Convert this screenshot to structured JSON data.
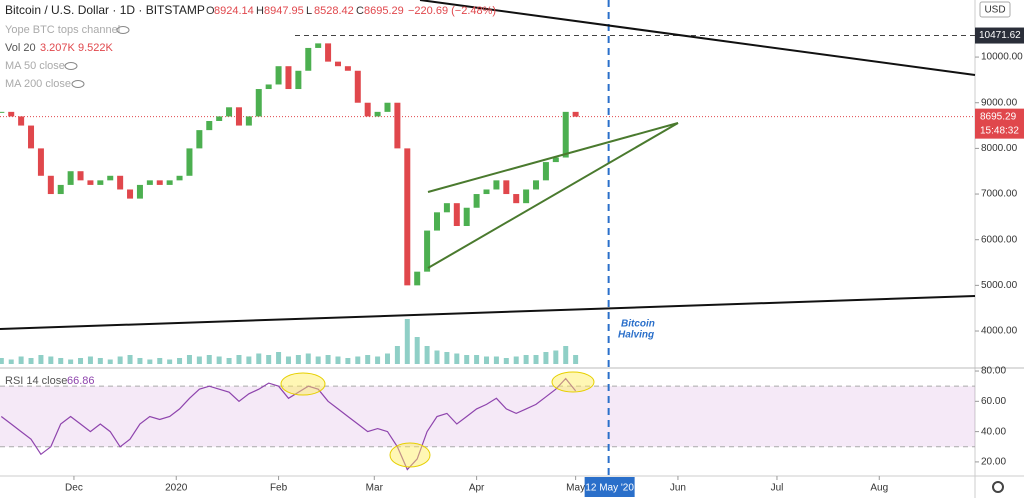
{
  "chart_data": {
    "type": "candlestick",
    "title": "Bitcoin / U.S. Dollar · 1D · BITSTAMP",
    "ohlc": [
      "O",
      "8924.14",
      "H",
      "8947.95",
      "L",
      "8528.42",
      "C",
      "8695.29"
    ],
    "change": "−220.69 (−2.48%)",
    "indicators": [
      "Yope BTC tops channel",
      "Vol 20",
      "MA 50 close",
      "MA 200 close"
    ],
    "volume_labels": [
      "3.207K",
      "9.522K"
    ],
    "currency": "USD",
    "reference_price": {
      "value": 10471.62,
      "label": "10471.62"
    },
    "last_price": {
      "value": 8695.29,
      "label": "8695.29"
    },
    "countdown": "15:48:32",
    "annotations": [
      "Bitcoin",
      "Halving"
    ],
    "halving": {
      "value": 162,
      "label": "12 May '20"
    },
    "x": [
      -22,
      -19,
      -16,
      -13,
      -10,
      -7,
      -4,
      -1,
      2,
      5,
      8,
      11,
      14,
      17,
      20,
      23,
      26,
      29,
      32,
      35,
      38,
      41,
      44,
      47,
      50,
      53,
      56,
      59,
      62,
      65,
      68,
      71,
      74,
      77,
      80,
      83,
      86,
      89,
      92,
      95,
      98,
      101,
      104,
      107,
      110,
      113,
      116,
      119,
      122,
      125,
      128,
      131,
      134,
      137,
      140,
      143,
      146,
      149,
      152
    ],
    "xlim": [
      -22.4,
      273
    ],
    "xticks": [
      {
        "value": 0,
        "label": "Dec"
      },
      {
        "value": 31,
        "label": "2020"
      },
      {
        "value": 62,
        "label": "Feb"
      },
      {
        "value": 91,
        "label": "Mar"
      },
      {
        "value": 122,
        "label": "Apr"
      },
      {
        "value": 152,
        "label": "May"
      },
      {
        "value": 183,
        "label": "Jun"
      },
      {
        "value": 213,
        "label": "Jul"
      },
      {
        "value": 244,
        "label": "Aug"
      }
    ],
    "ylim": [
      3190,
      11250
    ],
    "yticks": [
      {
        "value": 4000,
        "label": "4000.00"
      },
      {
        "value": 5000,
        "label": "5000.00"
      },
      {
        "value": 6000,
        "label": "6000.00"
      },
      {
        "value": 7000,
        "label": "7000.00"
      },
      {
        "value": 8000,
        "label": "8000.00"
      },
      {
        "value": 9000,
        "label": "9000.00"
      },
      {
        "value": 10000,
        "label": "10000.00"
      }
    ],
    "grid": false,
    "series": [
      {
        "name": "Close",
        "up_color": "#4caf50",
        "down_color": "#e0474c",
        "values": [
          8800,
          8700,
          8500,
          8000,
          7400,
          7000,
          7200,
          7500,
          7300,
          7200,
          7300,
          7400,
          7100,
          6900,
          7200,
          7300,
          7200,
          7300,
          7400,
          8000,
          8400,
          8600,
          8700,
          8900,
          8500,
          8700,
          9300,
          9400,
          9800,
          9300,
          9700,
          10200,
          10300,
          9900,
          9800,
          9700,
          9000,
          8700,
          8800,
          9000,
          8000,
          5000,
          5300,
          6200,
          6600,
          6800,
          6300,
          6700,
          7000,
          7100,
          7300,
          7000,
          6800,
          7100,
          7300,
          7700,
          7800,
          8800,
          8695.29
        ]
      }
    ],
    "volume": {
      "color": "#8fcfc6",
      "values": [
        4,
        3,
        5,
        4,
        6,
        5,
        4,
        3,
        4,
        5,
        4,
        3,
        5,
        6,
        4,
        3,
        4,
        3,
        4,
        6,
        5,
        6,
        5,
        4,
        6,
        5,
        7,
        6,
        8,
        5,
        6,
        7,
        5,
        6,
        5,
        4,
        5,
        6,
        5,
        7,
        12,
        30,
        18,
        12,
        9,
        8,
        7,
        6,
        6,
        5,
        5,
        4,
        5,
        6,
        6,
        8,
        9,
        12,
        6
      ]
    },
    "rsi": {
      "name": "RSI 14 close",
      "last_label": "66.86",
      "color": "#8e44ad",
      "ylim": [
        10.7,
        82
      ],
      "yticks": [
        {
          "value": 20,
          "label": "20.00"
        },
        {
          "value": 40,
          "label": "40.00"
        },
        {
          "value": 60,
          "label": "60.00"
        },
        {
          "value": 80,
          "label": "80.00"
        }
      ],
      "band": [
        30,
        70
      ],
      "values": [
        50,
        45,
        40,
        35,
        25,
        30,
        45,
        50,
        45,
        40,
        45,
        40,
        30,
        35,
        45,
        50,
        48,
        50,
        55,
        62,
        68,
        70,
        68,
        66,
        60,
        65,
        68,
        72,
        70,
        62,
        66,
        70,
        68,
        60,
        55,
        50,
        45,
        40,
        42,
        40,
        30,
        15,
        22,
        40,
        50,
        52,
        45,
        50,
        55,
        58,
        62,
        55,
        52,
        55,
        58,
        63,
        68,
        75,
        66.86
      ]
    }
  }
}
